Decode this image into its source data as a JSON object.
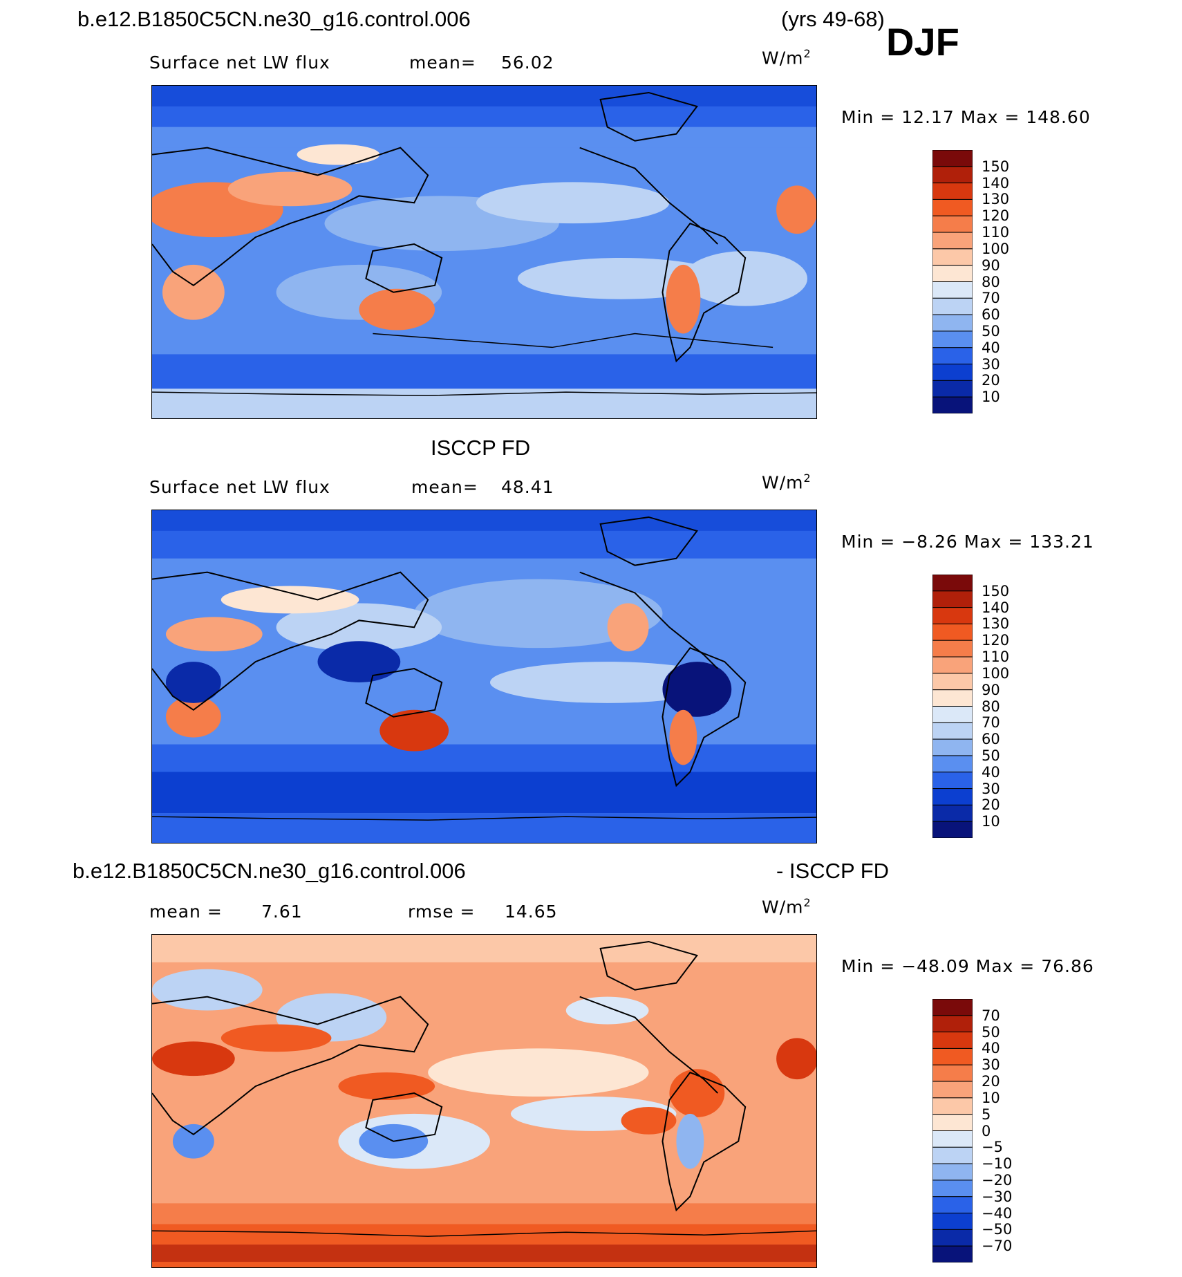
{
  "header": {
    "case_name": "b.e12.B1850C5CN.ne30_g16.control.006",
    "years": "(yrs 49-68)",
    "season": "DJF"
  },
  "panels": [
    {
      "id": "model",
      "subtitle": null,
      "left_label": "Surface net LW flux",
      "stat_label": "mean=",
      "stat_value": "56.02",
      "units": "W/m",
      "units_sup": "2",
      "minmax_text": "Min =   12.17 Max = 148.60",
      "colorbar_labels": [
        "150",
        "140",
        "130",
        "120",
        "110",
        "100",
        "90",
        "80",
        "70",
        "60",
        "50",
        "40",
        "30",
        "20",
        "10"
      ],
      "colorbar_colors": [
        "#7a0a0a",
        "#b0200a",
        "#d8380f",
        "#f05a22",
        "#f57d4a",
        "#f9a37a",
        "#fcc8a8",
        "#fde6d3",
        "#dbe8f8",
        "#bcd3f4",
        "#8fb5f0",
        "#5a8ff0",
        "#2a62e8",
        "#0c3fd0",
        "#0a2aa8",
        "#08137a"
      ],
      "map_palette": "positive"
    },
    {
      "id": "obs",
      "subtitle": "ISCCP FD",
      "left_label": "Surface net LW flux",
      "stat_label": "mean=",
      "stat_value": "48.41",
      "units": "W/m",
      "units_sup": "2",
      "minmax_text": "Min =   −8.26 Max = 133.21",
      "colorbar_labels": [
        "150",
        "140",
        "130",
        "120",
        "110",
        "100",
        "90",
        "80",
        "70",
        "60",
        "50",
        "40",
        "30",
        "20",
        "10"
      ],
      "colorbar_colors": [
        "#7a0a0a",
        "#b0200a",
        "#d8380f",
        "#f05a22",
        "#f57d4a",
        "#f9a37a",
        "#fcc8a8",
        "#fde6d3",
        "#dbe8f8",
        "#bcd3f4",
        "#8fb5f0",
        "#5a8ff0",
        "#2a62e8",
        "#0c3fd0",
        "#0a2aa8",
        "#08137a"
      ],
      "map_palette": "positive"
    },
    {
      "id": "diff",
      "subtitle_left": "b.e12.B1850C5CN.ne30_g16.control.006",
      "subtitle_right": "- ISCCP FD",
      "left_label": "mean =",
      "left_value": "7.61",
      "stat_label": "rmse =",
      "stat_value": "14.65",
      "units": "W/m",
      "units_sup": "2",
      "minmax_text": "Min = −48.09 Max =   76.86",
      "colorbar_labels": [
        "70",
        "50",
        "40",
        "30",
        "20",
        "10",
        "5",
        "0",
        "−5",
        "−10",
        "−20",
        "−30",
        "−40",
        "−50",
        "−70"
      ],
      "colorbar_colors": [
        "#7a0a0a",
        "#b0200a",
        "#d8380f",
        "#f05a22",
        "#f57d4a",
        "#f9a37a",
        "#fcc8a8",
        "#fde6d3",
        "#dbe8f8",
        "#bcd3f4",
        "#8fb5f0",
        "#5a8ff0",
        "#2a62e8",
        "#0c3fd0",
        "#0a2aa8",
        "#08137a"
      ],
      "map_palette": "difference"
    }
  ]
}
